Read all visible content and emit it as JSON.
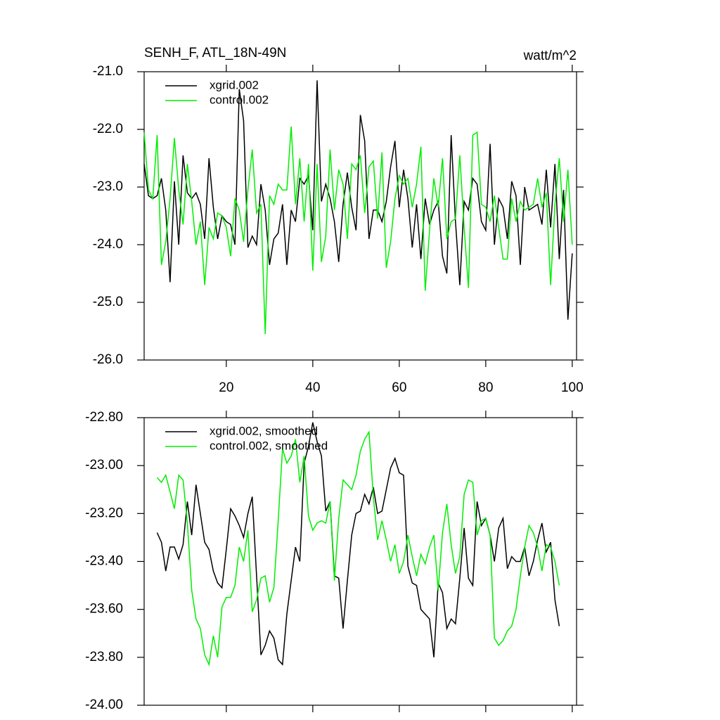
{
  "chart_data": [
    {
      "type": "line",
      "title": "SENH_F, ATL_18N-49N",
      "units": "watt/m^2",
      "x": [
        1,
        2,
        3,
        4,
        5,
        6,
        7,
        8,
        9,
        10,
        11,
        12,
        13,
        14,
        15,
        16,
        17,
        18,
        19,
        20,
        21,
        22,
        23,
        24,
        25,
        26,
        27,
        28,
        29,
        30,
        31,
        32,
        33,
        34,
        35,
        36,
        37,
        38,
        39,
        40,
        41,
        42,
        43,
        44,
        45,
        46,
        47,
        48,
        49,
        50,
        51,
        52,
        53,
        54,
        55,
        56,
        57,
        58,
        59,
        60,
        61,
        62,
        63,
        64,
        65,
        66,
        67,
        68,
        69,
        70,
        71,
        72,
        73,
        74,
        75,
        76,
        77,
        78,
        79,
        80,
        81,
        82,
        83,
        84,
        85,
        86,
        87,
        88,
        89,
        90,
        91,
        92,
        93,
        94,
        95,
        96,
        97,
        98,
        99,
        100
      ],
      "series": [
        {
          "name": "xgrid.002",
          "color": "#000000",
          "values": [
            -22.6,
            -23.15,
            -23.2,
            -23.15,
            -22.85,
            -23.4,
            -24.65,
            -22.9,
            -24.0,
            -22.45,
            -23.1,
            -23.2,
            -23.1,
            -23.3,
            -23.9,
            -22.5,
            -23.35,
            -23.9,
            -23.5,
            -23.6,
            -23.65,
            -24.0,
            -21.3,
            -21.85,
            -24.05,
            -23.85,
            -24.0,
            -22.95,
            -23.4,
            -24.35,
            -23.9,
            -23.8,
            -23.3,
            -24.35,
            -23.4,
            -23.6,
            -22.85,
            -22.95,
            -22.8,
            -23.75,
            -21.15,
            -23.25,
            -22.95,
            -23.2,
            -23.6,
            -24.3,
            -23.3,
            -22.75,
            -23.35,
            -23.75,
            -21.75,
            -22.2,
            -23.9,
            -23.4,
            -23.4,
            -23.6,
            -23.25,
            -22.65,
            -22.2,
            -23.35,
            -22.7,
            -23.2,
            -24.05,
            -23.3,
            -24.25,
            -23.2,
            -23.65,
            -23.4,
            -23.25,
            -24.2,
            -24.5,
            -22.1,
            -23.6,
            -24.7,
            -23.25,
            -23.4,
            -22.85,
            -22.95,
            -23.6,
            -23.75,
            -22.25,
            -24.0,
            -23.2,
            -23.35,
            -23.9,
            -22.9,
            -23.15,
            -24.35,
            -23.0,
            -23.4,
            -23.35,
            -23.3,
            -23.65,
            -22.7,
            -23.7,
            -22.6,
            -24.25,
            -23.05,
            -25.3,
            -24.15
          ]
        },
        {
          "name": "control.002",
          "color": "#00ee00",
          "values": [
            -22.05,
            -23.05,
            -23.2,
            -22.1,
            -24.35,
            -23.95,
            -23.2,
            -22.15,
            -23.05,
            -23.65,
            -22.6,
            -23.25,
            -24.0,
            -23.6,
            -24.7,
            -23.7,
            -23.9,
            -23.45,
            -23.5,
            -23.7,
            -24.2,
            -23.2,
            -23.4,
            -23.95,
            -23.05,
            -22.35,
            -23.45,
            -23.3,
            -25.55,
            -23.15,
            -23.3,
            -22.95,
            -23.05,
            -23.05,
            -21.95,
            -23.3,
            -22.5,
            -23.6,
            -22.6,
            -24.45,
            -22.6,
            -24.3,
            -23.85,
            -22.35,
            -23.4,
            -22.7,
            -22.95,
            -23.9,
            -22.6,
            -22.7,
            -22.45,
            -23.45,
            -22.65,
            -22.55,
            -23.55,
            -22.4,
            -24.4,
            -23.95,
            -23.2,
            -22.8,
            -22.95,
            -22.85,
            -23.35,
            -22.95,
            -22.3,
            -24.8,
            -23.75,
            -22.85,
            -23.35,
            -22.5,
            -23.9,
            -23.6,
            -23.55,
            -22.45,
            -23.7,
            -24.75,
            -22.1,
            -22.05,
            -23.3,
            -23.35,
            -23.6,
            -23.15,
            -23.7,
            -24.25,
            -24.25,
            -23.2,
            -23.6,
            -23.25,
            -23.4,
            -23.35,
            -23.3,
            -22.85,
            -23.35,
            -23.1,
            -24.7,
            -23.3,
            -22.5,
            -23.6,
            -22.7,
            -24.0
          ]
        }
      ],
      "xlim": [
        1,
        101
      ],
      "xticks": [
        20,
        40,
        60,
        80,
        100
      ],
      "show_xtick_labels": true,
      "ylim": [
        -26,
        -21
      ],
      "yticks": [
        {
          "value": -26,
          "label": "-26.0"
        },
        {
          "value": -25,
          "label": "-25.0"
        },
        {
          "value": -24,
          "label": "-24.0"
        },
        {
          "value": -23,
          "label": "-23.0"
        },
        {
          "value": -22,
          "label": "-22.0"
        },
        {
          "value": -21,
          "label": "-21.0"
        }
      ],
      "legend": "upper left"
    },
    {
      "type": "line",
      "x": [
        4,
        5,
        6,
        7,
        8,
        9,
        10,
        11,
        12,
        13,
        14,
        15,
        16,
        17,
        18,
        19,
        20,
        21,
        22,
        23,
        24,
        25,
        26,
        27,
        28,
        29,
        30,
        31,
        32,
        33,
        34,
        35,
        36,
        37,
        38,
        39,
        40,
        41,
        42,
        43,
        44,
        45,
        46,
        47,
        48,
        49,
        50,
        51,
        52,
        53,
        54,
        55,
        56,
        57,
        58,
        59,
        60,
        61,
        62,
        63,
        64,
        65,
        66,
        67,
        68,
        69,
        70,
        71,
        72,
        73,
        74,
        75,
        76,
        77,
        78,
        79,
        80,
        81,
        82,
        83,
        84,
        85,
        86,
        87,
        88,
        89,
        90,
        91,
        92,
        93,
        94,
        95,
        96,
        97
      ],
      "series": [
        {
          "name": "xgrid.002, smoothed",
          "color": "#000000",
          "values": [
            -23.28,
            -23.32,
            -23.44,
            -23.34,
            -23.34,
            -23.39,
            -23.33,
            -23.15,
            -23.29,
            -23.08,
            -23.2,
            -23.32,
            -23.35,
            -23.44,
            -23.49,
            -23.51,
            -23.35,
            -23.18,
            -23.21,
            -23.25,
            -23.3,
            -23.2,
            -23.13,
            -23.46,
            -23.79,
            -23.75,
            -23.69,
            -23.72,
            -23.81,
            -23.83,
            -23.62,
            -23.48,
            -23.34,
            -23.4,
            -22.99,
            -22.92,
            -22.82,
            -22.9,
            -22.96,
            -23.19,
            -23.15,
            -23.46,
            -23.47,
            -23.68,
            -23.48,
            -23.29,
            -23.2,
            -23.19,
            -23.12,
            -23.16,
            -23.09,
            -23.2,
            -23.19,
            -23.1,
            -23.01,
            -22.97,
            -23.03,
            -23.04,
            -23.42,
            -23.49,
            -23.5,
            -23.6,
            -23.62,
            -23.64,
            -23.8,
            -23.49,
            -23.53,
            -23.68,
            -23.64,
            -23.66,
            -23.47,
            -23.26,
            -23.47,
            -23.5,
            -23.15,
            -23.25,
            -23.22,
            -23.29,
            -23.4,
            -23.26,
            -23.22,
            -23.43,
            -23.38,
            -23.4,
            -23.4,
            -23.34,
            -23.46,
            -23.4,
            -23.31,
            -23.24,
            -23.36,
            -23.32,
            -23.56,
            -23.67
          ]
        },
        {
          "name": "control.002, smoothed",
          "color": "#00ee00",
          "values": [
            -23.05,
            -23.07,
            -23.04,
            -23.11,
            -23.18,
            -23.04,
            -23.06,
            -23.24,
            -23.52,
            -23.64,
            -23.68,
            -23.79,
            -23.83,
            -23.71,
            -23.8,
            -23.59,
            -23.55,
            -23.55,
            -23.5,
            -23.34,
            -23.4,
            -23.27,
            -23.61,
            -23.56,
            -23.47,
            -23.46,
            -23.57,
            -23.51,
            -23.23,
            -22.93,
            -22.99,
            -22.96,
            -22.89,
            -23.07,
            -22.96,
            -23.21,
            -23.27,
            -23.24,
            -23.23,
            -23.24,
            -23.15,
            -23.48,
            -23.22,
            -23.06,
            -23.08,
            -23.1,
            -23.04,
            -22.94,
            -22.89,
            -22.86,
            -23.13,
            -23.31,
            -23.23,
            -23.31,
            -23.4,
            -23.33,
            -23.45,
            -23.4,
            -23.29,
            -23.38,
            -23.46,
            -23.37,
            -23.41,
            -23.34,
            -23.29,
            -23.52,
            -23.28,
            -23.16,
            -23.33,
            -23.45,
            -23.38,
            -23.12,
            -23.06,
            -23.07,
            -23.29,
            -23.23,
            -23.22,
            -23.29,
            -23.72,
            -23.75,
            -23.73,
            -23.69,
            -23.67,
            -23.6,
            -23.46,
            -23.34,
            -23.25,
            -23.28,
            -23.34,
            -23.44,
            -23.33,
            -23.34,
            -23.4,
            -23.5
          ]
        }
      ],
      "xlim": [
        1,
        101
      ],
      "xticks": [
        20,
        40,
        60,
        80,
        100
      ],
      "show_xtick_labels": false,
      "ylim": [
        -24,
        -22.8
      ],
      "yticks": [
        {
          "value": -24,
          "label": "-24.00"
        },
        {
          "value": -23.8,
          "label": "-23.80"
        },
        {
          "value": -23.6,
          "label": "-23.60"
        },
        {
          "value": -23.4,
          "label": "-23.40"
        },
        {
          "value": -23.2,
          "label": "-23.20"
        },
        {
          "value": -23,
          "label": "-23.00"
        },
        {
          "value": -22.8,
          "label": "-22.80"
        }
      ],
      "legend": "upper left"
    }
  ]
}
